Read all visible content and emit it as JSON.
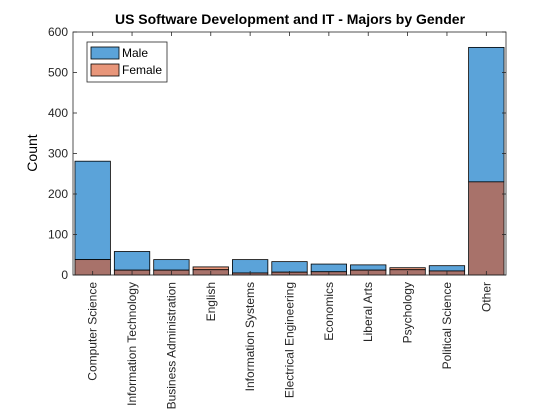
{
  "chart_data": {
    "type": "bar",
    "title": "US Software Development and IT - Majors by Gender",
    "xlabel": "",
    "ylabel": "Count",
    "ylim": [
      0,
      600
    ],
    "yticks": [
      0,
      100,
      200,
      300,
      400,
      500,
      600
    ],
    "categories": [
      "Computer Science",
      "Information Technology",
      "Business Administration",
      "English",
      "Information Systems",
      "Electrical Engineering",
      "Economics",
      "Liberal Arts",
      "Psychology",
      "Political Science",
      "Other"
    ],
    "series": [
      {
        "name": "Male",
        "color": "#5ba3d9",
        "values": [
          281,
          58,
          38,
          13,
          38,
          33,
          27,
          25,
          13,
          23,
          562
        ]
      },
      {
        "name": "Female",
        "color": "#e8967a",
        "values": [
          38,
          12,
          12,
          20,
          5,
          7,
          8,
          12,
          18,
          10,
          230
        ]
      }
    ],
    "overlap_color": "#a8726a",
    "grid": false,
    "legend": "top-left"
  }
}
